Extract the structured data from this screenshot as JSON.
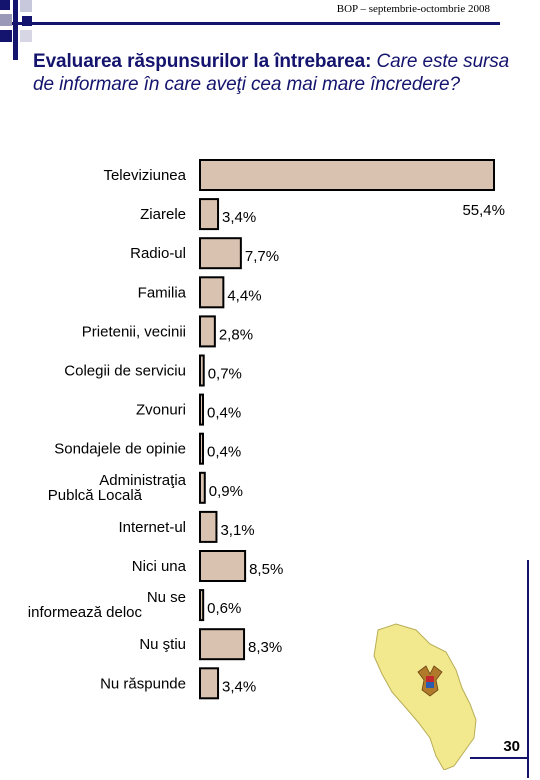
{
  "header": {
    "text": "BOP – septembrie-octombrie 2008"
  },
  "title": {
    "lead": "Evaluarea răspunsurilor la întrebarea: ",
    "question": "Care este sursa de informare în care aveţi cea mai mare încredere?"
  },
  "chart_data": {
    "type": "bar",
    "orientation": "horizontal",
    "categories": [
      "Televiziunea",
      "Ziarele",
      "Radio-ul",
      "Familia",
      "Prietenii, vecinii",
      "Colegii de serviciu",
      "Zvonuri",
      "Sondajele de opinie",
      "Administraţia Publcă Locală",
      "Internet-ul",
      "Nici una",
      "Nu se informează deloc",
      "Nu ştiu",
      "Nu răspunde"
    ],
    "values": [
      55.4,
      3.4,
      7.7,
      4.4,
      2.8,
      0.7,
      0.4,
      0.4,
      0.9,
      3.1,
      8.5,
      0.6,
      8.3,
      3.4
    ],
    "data_labels": [
      "55,4%",
      "3,4%",
      "7,7%",
      "4,4%",
      "2,8%",
      "0,7%",
      "0,4%",
      "0,4%",
      "0,9%",
      "3,1%",
      "8,5%",
      "0,6%",
      "8,3%",
      "3,4%"
    ],
    "xlim": [
      0,
      55.4
    ],
    "grid": false,
    "legend": "none",
    "bar_color": "#d9c3b0"
  },
  "colors": {
    "accent": "#14146e",
    "map_fill": "#f2e98e"
  },
  "page": {
    "number": "30"
  }
}
